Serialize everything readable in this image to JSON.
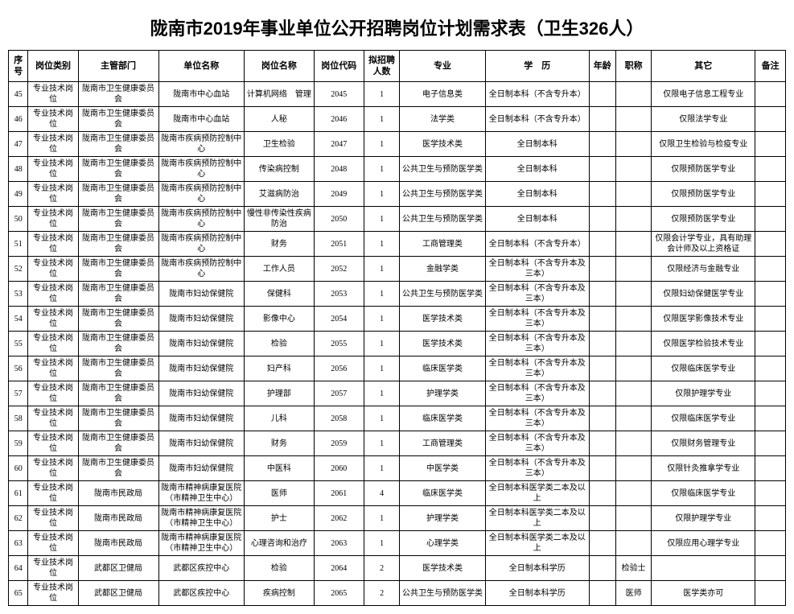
{
  "title": "陇南市2019年事业单位公开招聘岗位计划需求表（卫生326人）",
  "columns": [
    "序号",
    "岗位类别",
    "主管部门",
    "单位名称",
    "岗位名称",
    "岗位代码",
    "拟招聘人数",
    "专业",
    "学　历",
    "年龄",
    "职称",
    "其它",
    "备注"
  ],
  "rows": [
    {
      "seq": "45",
      "cat": "专业技术岗位",
      "dept": "陇南市卫生健康委员会",
      "unit": "陇南市中心血站",
      "job": "计算机网络　管理",
      "code": "2045",
      "num": "1",
      "major": "电子信息类",
      "edu": "全日制本科（不含专升本）",
      "age": "",
      "title": "",
      "other": "仅限电子信息工程专业",
      "note": ""
    },
    {
      "seq": "46",
      "cat": "专业技术岗位",
      "dept": "陇南市卫生健康委员会",
      "unit": "陇南市中心血站",
      "job": "人秘",
      "code": "2046",
      "num": "1",
      "major": "法学类",
      "edu": "全日制本科（不含专升本）",
      "age": "",
      "title": "",
      "other": "仅限法学专业",
      "note": ""
    },
    {
      "seq": "47",
      "cat": "专业技术岗位",
      "dept": "陇南市卫生健康委员会",
      "unit": "陇南市疾病预防控制中心",
      "job": "卫生检验",
      "code": "2047",
      "num": "1",
      "major": "医学技术类",
      "edu": "全日制本科",
      "age": "",
      "title": "",
      "other": "仅限卫生检验与检疫专业",
      "note": ""
    },
    {
      "seq": "48",
      "cat": "专业技术岗位",
      "dept": "陇南市卫生健康委员会",
      "unit": "陇南市疾病预防控制中心",
      "job": "传染病控制",
      "code": "2048",
      "num": "1",
      "major": "公共卫生与预防医学类",
      "edu": "全日制本科",
      "age": "",
      "title": "",
      "other": "仅限预防医学专业",
      "note": ""
    },
    {
      "seq": "49",
      "cat": "专业技术岗位",
      "dept": "陇南市卫生健康委员会",
      "unit": "陇南市疾病预防控制中心",
      "job": "艾滋病防治",
      "code": "2049",
      "num": "1",
      "major": "公共卫生与预防医学类",
      "edu": "全日制本科",
      "age": "",
      "title": "",
      "other": "仅限预防医学专业",
      "note": ""
    },
    {
      "seq": "50",
      "cat": "专业技术岗位",
      "dept": "陇南市卫生健康委员会",
      "unit": "陇南市疾病预防控制中心",
      "job": "慢性非传染性疾病防治",
      "code": "2050",
      "num": "1",
      "major": "公共卫生与预防医学类",
      "edu": "全日制本科",
      "age": "",
      "title": "",
      "other": "仅限预防医学专业",
      "note": ""
    },
    {
      "seq": "51",
      "cat": "专业技术岗位",
      "dept": "陇南市卫生健康委员会",
      "unit": "陇南市疾病预防控制中心",
      "job": "财务",
      "code": "2051",
      "num": "1",
      "major": "工商管理类",
      "edu": "全日制本科（不含专升本）",
      "age": "",
      "title": "",
      "other": "仅限会计学专业，具有助理会计师及以上资格证",
      "note": ""
    },
    {
      "seq": "52",
      "cat": "专业技术岗位",
      "dept": "陇南市卫生健康委员会",
      "unit": "陇南市疾病预防控制中心",
      "job": "工作人员",
      "code": "2052",
      "num": "1",
      "major": "金融学类",
      "edu": "全日制本科（不含专升本及三本）",
      "age": "",
      "title": "",
      "other": "仅限经济与金融专业",
      "note": ""
    },
    {
      "seq": "53",
      "cat": "专业技术岗位",
      "dept": "陇南市卫生健康委员会",
      "unit": "陇南市妇幼保健院",
      "job": "保健科",
      "code": "2053",
      "num": "1",
      "major": "公共卫生与预防医学类",
      "edu": "全日制本科（不含专升本及三本）",
      "age": "",
      "title": "",
      "other": "仅限妇幼保健医学专业",
      "note": ""
    },
    {
      "seq": "54",
      "cat": "专业技术岗位",
      "dept": "陇南市卫生健康委员会",
      "unit": "陇南市妇幼保健院",
      "job": "影像中心",
      "code": "2054",
      "num": "1",
      "major": "医学技术类",
      "edu": "全日制本科（不含专升本及三本）",
      "age": "",
      "title": "",
      "other": "仅限医学影像技术专业",
      "note": ""
    },
    {
      "seq": "55",
      "cat": "专业技术岗位",
      "dept": "陇南市卫生健康委员会",
      "unit": "陇南市妇幼保健院",
      "job": "检验",
      "code": "2055",
      "num": "1",
      "major": "医学技术类",
      "edu": "全日制本科（不含专升本及三本）",
      "age": "",
      "title": "",
      "other": "仅限医学检验技术专业",
      "note": ""
    },
    {
      "seq": "56",
      "cat": "专业技术岗位",
      "dept": "陇南市卫生健康委员会",
      "unit": "陇南市妇幼保健院",
      "job": "妇产科",
      "code": "2056",
      "num": "1",
      "major": "临床医学类",
      "edu": "全日制本科（不含专升本及三本）",
      "age": "",
      "title": "",
      "other": "仅限临床医学专业",
      "note": ""
    },
    {
      "seq": "57",
      "cat": "专业技术岗位",
      "dept": "陇南市卫生健康委员会",
      "unit": "陇南市妇幼保健院",
      "job": "护理部",
      "code": "2057",
      "num": "1",
      "major": "护理学类",
      "edu": "全日制本科（不含专升本及三本）",
      "age": "",
      "title": "",
      "other": "仅限护理学专业",
      "note": ""
    },
    {
      "seq": "58",
      "cat": "专业技术岗位",
      "dept": "陇南市卫生健康委员会",
      "unit": "陇南市妇幼保健院",
      "job": "儿科",
      "code": "2058",
      "num": "1",
      "major": "临床医学类",
      "edu": "全日制本科（不含专升本及三本）",
      "age": "",
      "title": "",
      "other": "仅限临床医学专业",
      "note": ""
    },
    {
      "seq": "59",
      "cat": "专业技术岗位",
      "dept": "陇南市卫生健康委员会",
      "unit": "陇南市妇幼保健院",
      "job": "财务",
      "code": "2059",
      "num": "1",
      "major": "工商管理类",
      "edu": "全日制本科（不含专升本及三本）",
      "age": "",
      "title": "",
      "other": "仅限财务管理专业",
      "note": ""
    },
    {
      "seq": "60",
      "cat": "专业技术岗位",
      "dept": "陇南市卫生健康委员会",
      "unit": "陇南市妇幼保健院",
      "job": "中医科",
      "code": "2060",
      "num": "1",
      "major": "中医学类",
      "edu": "全日制本科（不含专升本及三本）",
      "age": "",
      "title": "",
      "other": "仅限针灸推拿学专业",
      "note": ""
    },
    {
      "seq": "61",
      "cat": "专业技术岗位",
      "dept": "陇南市民政局",
      "unit": "陇南市精神病康复医院（市精神卫生中心）",
      "job": "医师",
      "code": "2061",
      "num": "4",
      "major": "临床医学类",
      "edu": "全日制本科医学类二本及以上",
      "age": "",
      "title": "",
      "other": "仅限临床医学专业",
      "note": ""
    },
    {
      "seq": "62",
      "cat": "专业技术岗位",
      "dept": "陇南市民政局",
      "unit": "陇南市精神病康复医院（市精神卫生中心）",
      "job": "护士",
      "code": "2062",
      "num": "1",
      "major": "护理学类",
      "edu": "全日制本科医学类二本及以上",
      "age": "",
      "title": "",
      "other": "仅限护理学专业",
      "note": ""
    },
    {
      "seq": "63",
      "cat": "专业技术岗位",
      "dept": "陇南市民政局",
      "unit": "陇南市精神病康复医院（市精神卫生中心）",
      "job": "心理咨询和治疗",
      "code": "2063",
      "num": "1",
      "major": "心理学类",
      "edu": "全日制本科医学类二本及以上",
      "age": "",
      "title": "",
      "other": "仅限应用心理学专业",
      "note": ""
    },
    {
      "seq": "64",
      "cat": "专业技术岗位",
      "dept": "武都区卫健局",
      "unit": "武都区疾控中心",
      "job": "检验",
      "code": "2064",
      "num": "2",
      "major": "医学技术类",
      "edu": "全日制本科学历",
      "age": "",
      "title": "检验士",
      "other": "",
      "note": ""
    },
    {
      "seq": "65",
      "cat": "专业技术岗位",
      "dept": "武都区卫健局",
      "unit": "武都区疾控中心",
      "job": "疾病控制",
      "code": "2065",
      "num": "2",
      "major": "公共卫生与预防医学类",
      "edu": "全日制本科学历",
      "age": "",
      "title": "医师",
      "other": "医学类亦可",
      "note": ""
    }
  ]
}
